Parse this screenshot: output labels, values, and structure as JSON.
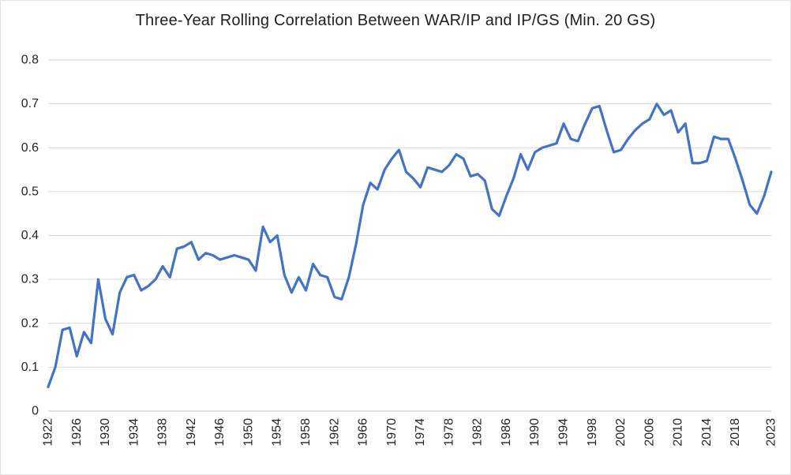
{
  "chart_data": {
    "type": "line",
    "title": "Three-Year Rolling Correlation Between WAR/IP and IP/GS (Min. 20 GS)",
    "xlabel": "",
    "ylabel": "",
    "legend": "none",
    "grid": "horizontal",
    "ylim": [
      0,
      0.8
    ],
    "y_ticks": [
      "0",
      "0.1",
      "0.2",
      "0.3",
      "0.4",
      "0.5",
      "0.6",
      "0.7",
      "0.8"
    ],
    "x_tick_years": [
      1922,
      1926,
      1930,
      1934,
      1938,
      1942,
      1946,
      1950,
      1954,
      1958,
      1962,
      1966,
      1970,
      1974,
      1978,
      1982,
      1986,
      1990,
      1994,
      1998,
      2002,
      2006,
      2010,
      2014,
      2018,
      2023
    ],
    "x": [
      1922,
      1923,
      1924,
      1925,
      1926,
      1927,
      1928,
      1929,
      1930,
      1931,
      1932,
      1933,
      1934,
      1935,
      1936,
      1937,
      1938,
      1939,
      1940,
      1941,
      1942,
      1943,
      1944,
      1945,
      1946,
      1947,
      1948,
      1949,
      1950,
      1951,
      1952,
      1953,
      1954,
      1955,
      1956,
      1957,
      1958,
      1959,
      1960,
      1961,
      1962,
      1963,
      1964,
      1965,
      1966,
      1967,
      1968,
      1969,
      1970,
      1971,
      1972,
      1973,
      1974,
      1975,
      1976,
      1977,
      1978,
      1979,
      1980,
      1981,
      1982,
      1983,
      1984,
      1985,
      1986,
      1987,
      1988,
      1989,
      1990,
      1991,
      1992,
      1993,
      1994,
      1995,
      1996,
      1997,
      1998,
      1999,
      2000,
      2001,
      2002,
      2003,
      2004,
      2005,
      2006,
      2007,
      2008,
      2009,
      2010,
      2011,
      2012,
      2013,
      2014,
      2015,
      2016,
      2017,
      2018,
      2019,
      2020,
      2021,
      2022,
      2023
    ],
    "values": [
      0.055,
      0.1,
      0.185,
      0.19,
      0.125,
      0.18,
      0.155,
      0.3,
      0.21,
      0.175,
      0.27,
      0.305,
      0.31,
      0.275,
      0.285,
      0.3,
      0.33,
      0.305,
      0.37,
      0.375,
      0.385,
      0.345,
      0.36,
      0.355,
      0.345,
      0.35,
      0.355,
      0.35,
      0.345,
      0.32,
      0.42,
      0.385,
      0.4,
      0.31,
      0.27,
      0.305,
      0.275,
      0.335,
      0.31,
      0.305,
      0.26,
      0.255,
      0.305,
      0.38,
      0.47,
      0.52,
      0.505,
      0.55,
      0.575,
      0.595,
      0.545,
      0.53,
      0.51,
      0.555,
      0.55,
      0.545,
      0.56,
      0.585,
      0.575,
      0.535,
      0.54,
      0.525,
      0.46,
      0.445,
      0.49,
      0.53,
      0.585,
      0.55,
      0.59,
      0.6,
      0.605,
      0.61,
      0.655,
      0.62,
      0.615,
      0.655,
      0.69,
      0.695,
      0.64,
      0.59,
      0.595,
      0.62,
      0.64,
      0.655,
      0.665,
      0.7,
      0.675,
      0.685,
      0.635,
      0.655,
      0.565,
      0.565,
      0.57,
      0.625,
      0.62,
      0.62,
      0.575,
      0.525,
      0.47,
      0.45,
      0.49,
      0.545
    ],
    "line_color": "#4472C4",
    "gridline_color": "#D9D9D9",
    "axis_line_color": "#BFBFBF",
    "text_color": "#262626",
    "background": "#FFFFFF"
  }
}
